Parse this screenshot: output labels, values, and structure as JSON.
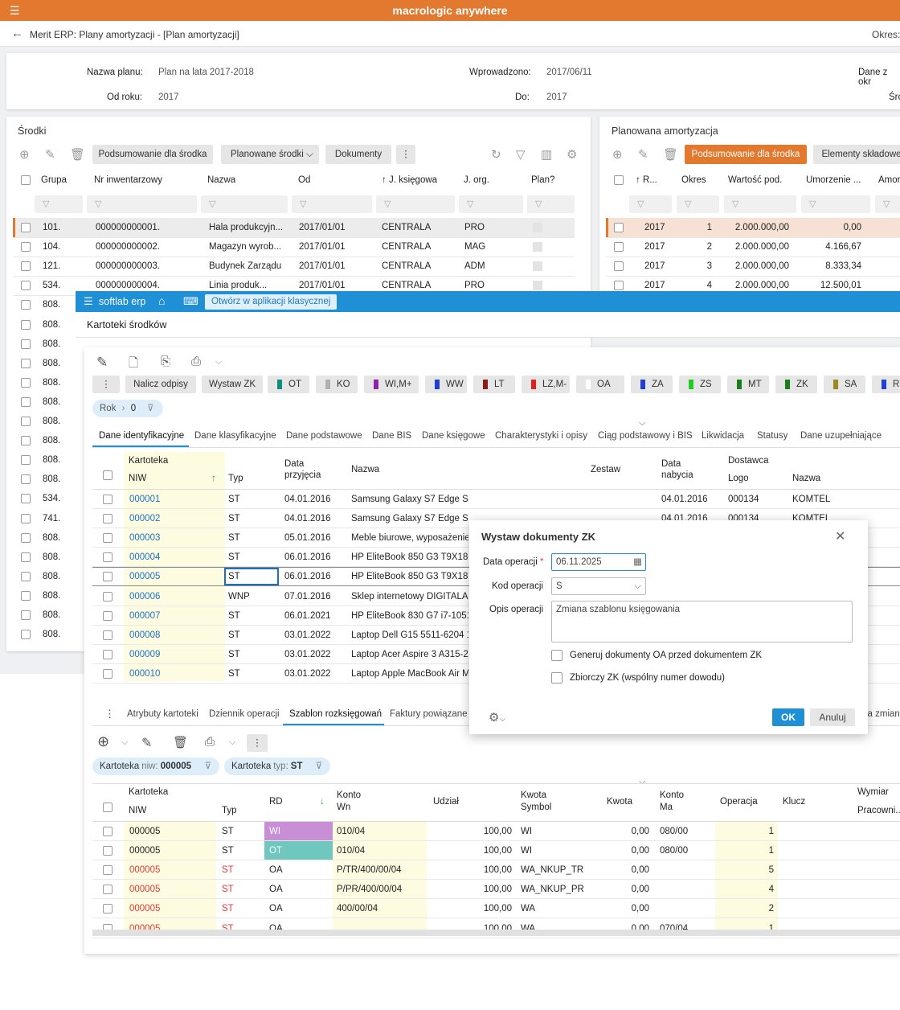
{
  "app": {
    "brand": "macrologic anywhere",
    "window_title": "Merit ERP: Plany amortyzacji - [Plan amortyzacji]",
    "okres_label": "Okres:"
  },
  "plan_form": {
    "nazwa_label": "Nazwa planu:",
    "nazwa": "Plan na lata 2017-2018",
    "od_label": "Od roku:",
    "od": "2017",
    "wprowadzono_label": "Wprowadzono:",
    "wprowadzono": "2017/06/11",
    "do_label": "Do:",
    "do": "2017",
    "dane_label": "Dane z okr",
    "sr_label": "Śro"
  },
  "srodki": {
    "title": "Środki",
    "btn_podsumowanie": "Podsumowanie dla środka",
    "btn_planowane": "Planowane środki",
    "btn_dokumenty": "Dokumenty",
    "headers": [
      "Grupa",
      "Nr inwentarzowy",
      "Nazwa",
      "Od",
      "J. księgowa",
      "J. org.",
      "Plan?"
    ],
    "rows": [
      [
        "101.",
        "000000000001.",
        "Hala produkcyjn...",
        "2017/01/01",
        "CENTRALA",
        "PRO"
      ],
      [
        "104.",
        "000000000002.",
        "Magazyn wyrob...",
        "2017/01/01",
        "CENTRALA",
        "MAG"
      ],
      [
        "121.",
        "000000000003.",
        "Budynek Zarządu",
        "2017/01/01",
        "CENTRALA",
        "ADM"
      ],
      [
        "534.",
        "000000000004.",
        "Linia produk...",
        "2017/01/01",
        "CENTRALA",
        "PRO"
      ]
    ],
    "grupa_more": [
      "808.",
      "808.",
      "808.",
      "808.",
      "808.",
      "808.",
      "808.",
      "808.",
      "808.",
      "808.",
      "534.",
      "741.",
      "808.",
      "808.",
      "808.",
      "808.",
      "808.",
      "808."
    ]
  },
  "planowana": {
    "title": "Planowana amortyzacja",
    "btn_podsumowanie": "Podsumowanie dla środka",
    "btn_elementy": "Elementy składowe",
    "headers": [
      "R...",
      "Okres",
      "Wartość pod.",
      "Umorzenie ...",
      "Amor"
    ],
    "rows": [
      [
        "2017",
        "1",
        "2.000.000,00",
        "0,00"
      ],
      [
        "2017",
        "2",
        "2.000.000,00",
        "4.166,67"
      ],
      [
        "2017",
        "3",
        "2.000.000,00",
        "8.333,34"
      ],
      [
        "2017",
        "4",
        "2.000.000,00",
        "12.500,01"
      ]
    ]
  },
  "softlab": {
    "brand": "softlab erp",
    "open_classic": "Otwórz w aplikacji klasycznej",
    "title": "Kartoteki środków"
  },
  "toolbar2": {
    "nalicz": "Nalicz odpisy",
    "wystaw": "Wystaw ZK",
    "chips": [
      {
        "label": "OT",
        "color": "#0e8f7e"
      },
      {
        "label": "KO",
        "color": "#b0b0b0"
      },
      {
        "label": "WI,M+",
        "color": "#8e24aa"
      },
      {
        "label": "WW",
        "color": "#1f3fd6"
      },
      {
        "label": "LT",
        "color": "#8b1a1a"
      },
      {
        "label": "LZ,M-",
        "color": "#e02020"
      },
      {
        "label": "OA",
        "color": "#ffffff"
      },
      {
        "label": "ZA",
        "color": "#1f3fd6"
      },
      {
        "label": "ZS",
        "color": "#22cc22"
      },
      {
        "label": "MT",
        "color": "#1a7f1a"
      },
      {
        "label": "ZK",
        "color": "#1a7f1a"
      },
      {
        "label": "SA",
        "color": "#9a8a20"
      },
      {
        "label": "R",
        "color": "#1f3fd6"
      }
    ]
  },
  "rok_filter": {
    "label": "Rok",
    "value": "0"
  },
  "tabs": [
    "Dane identyfikacyjne",
    "Dane klasyfikacyjne",
    "Dane podstawowe",
    "Dane BIS",
    "Dane księgowe",
    "Charakterystyki i opisy",
    "Ciąg podstawowy i BIS",
    "Likwidacja",
    "Statusy",
    "Dane uzupełniające"
  ],
  "grid1": {
    "h_kartoteka": "Kartoteka",
    "h_niw": "NIW",
    "h_typ": "Typ",
    "h_data1": "Data",
    "h_data2": "przyjęcia",
    "h_nazwa": "Nazwa",
    "h_zestaw": "Zestaw",
    "h_dnab1": "Data",
    "h_dnab2": "nabycia",
    "h_dostawca": "Dostawca",
    "h_logo": "Logo",
    "h_dnazwa": "Nazwa",
    "rows": [
      [
        "000001",
        "ST",
        "04.01.2016",
        "Samsung Galaxy S7 Edge SM-G935 32GB",
        "04.01.2016",
        "000134",
        "KOMTEL"
      ],
      [
        "000002",
        "ST",
        "04.01.2016",
        "Samsung Galaxy S7 Edge SM-G935 32GB",
        "04.01.2016",
        "000134",
        "KOMTEL"
      ],
      [
        "000003",
        "ST",
        "05.01.2016",
        "Meble biurowe, wyposażenie p",
        "",
        "",
        ""
      ],
      [
        "000004",
        "ST",
        "06.01.2016",
        "HP EliteBook 850 G3 T9X18EA",
        "",
        "",
        ""
      ],
      [
        "000005",
        "ST",
        "06.01.2016",
        "HP EliteBook 850 G3 T9X18EA",
        "",
        "",
        ""
      ],
      [
        "000006",
        "WNP",
        "07.01.2016",
        "Sklep internetowy DIGITALART",
        "",
        "",
        ""
      ],
      [
        "000007",
        "ST",
        "06.01.2021",
        "HP EliteBook 830 G7 i7-10510",
        "",
        "",
        ""
      ],
      [
        "000008",
        "ST",
        "03.01.2022",
        "Laptop Dell G15 5511-6204 15",
        "",
        "",
        ""
      ],
      [
        "000009",
        "ST",
        "03.01.2022",
        "Laptop Acer Aspire 3 A315-23",
        "",
        "",
        ""
      ],
      [
        "000010",
        "ST",
        "03.01.2022",
        "Laptop Apple MacBook Air M1",
        "",
        "",
        ""
      ]
    ]
  },
  "lower_tabs": [
    "Atrybuty kartoteki",
    "Dziennik operacji",
    "Szablon rozksięgowań",
    "Faktury powiązane z"
  ],
  "lower_tab_right": "ia zmian",
  "filter_chips": [
    {
      "label": "Kartoteka",
      "sub": "niw:",
      "value": "000005"
    },
    {
      "label": "Kartoteka",
      "sub": "typ:",
      "value": "ST"
    }
  ],
  "grid2": {
    "h_kartoteka": "Kartoteka",
    "h_niw": "NIW",
    "h_typ": "Typ",
    "h_rd": "RD",
    "h_konto1": "Konto",
    "h_konto2": "Wn",
    "h_udzial": "Udział",
    "h_kwota1": "Kwota",
    "h_kwota2": "Symbol",
    "h_kw": "Kwota",
    "h_kma1": "Konto",
    "h_kma2": "Ma",
    "h_op": "Operacja",
    "h_klucz": "Klucz",
    "h_wym1": "Wymiar",
    "h_wym2": "Pracowni...",
    "rows": [
      [
        "000005",
        "ST",
        "WI",
        "010/04",
        "100,00",
        "WI",
        "0,00",
        "080/00",
        "1"
      ],
      [
        "000005",
        "ST",
        "OT",
        "010/04",
        "100,00",
        "WI",
        "0,00",
        "080/00",
        "1"
      ],
      [
        "000005",
        "ST",
        "OA",
        "P/TR/400/00/04",
        "100,00",
        "WA_NKUP_TR",
        "0,00",
        "",
        "5"
      ],
      [
        "000005",
        "ST",
        "OA",
        "P/PR/400/00/04",
        "100,00",
        "WA_NKUP_PR",
        "0,00",
        "",
        "4"
      ],
      [
        "000005",
        "ST",
        "OA",
        "400/00/04",
        "100,00",
        "WA",
        "0,00",
        "",
        "2"
      ],
      [
        "000005",
        "ST",
        "OA",
        "",
        "100,00",
        "WA",
        "0,00",
        "070/04",
        "1"
      ]
    ]
  },
  "dialog": {
    "title": "Wystaw dokumenty ZK",
    "data_label": "Data operacji",
    "data_value": "06.11.2025",
    "kod_label": "Kod operacji",
    "kod_value": "S",
    "opis_label": "Opis operacji",
    "opis_value": "Zmiana szablonu księgowania",
    "cb1": "Generuj dokumenty OA przed dokumentem ZK",
    "cb2": "Zbiorczy ZK (wspólny numer dowodu)",
    "ok": "OK",
    "cancel": "Anuluj"
  }
}
